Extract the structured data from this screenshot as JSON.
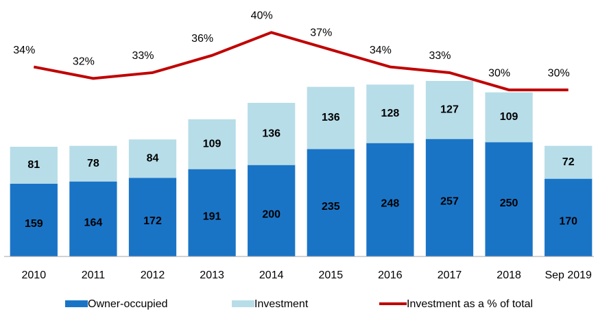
{
  "chart_data": {
    "type": "stacked-bar-line",
    "categories": [
      "2010",
      "2011",
      "2012",
      "2013",
      "2014",
      "2015",
      "2016",
      "2017",
      "2018",
      "Sep 2019"
    ],
    "series": [
      {
        "name": "Owner-occupied",
        "color": "#1a74c6",
        "values": [
          159,
          164,
          172,
          191,
          200,
          235,
          248,
          257,
          250,
          170
        ]
      },
      {
        "name": "Investment",
        "color": "#b7dde8",
        "values": [
          81,
          78,
          84,
          109,
          136,
          136,
          128,
          127,
          109,
          72
        ]
      },
      {
        "name": "Investment as a % of total",
        "color": "#c00000",
        "axis": "y2",
        "values": [
          34,
          32,
          33,
          36,
          40,
          37,
          34,
          33,
          30,
          30
        ],
        "value_labels": [
          "34%",
          "32%",
          "33%",
          "36%",
          "40%",
          "37%",
          "34%",
          "33%",
          "30%",
          "30%"
        ]
      }
    ],
    "ylim": [
      0,
      534
    ],
    "y2lim": [
      1,
      43.5
    ],
    "legend": "bottom"
  }
}
